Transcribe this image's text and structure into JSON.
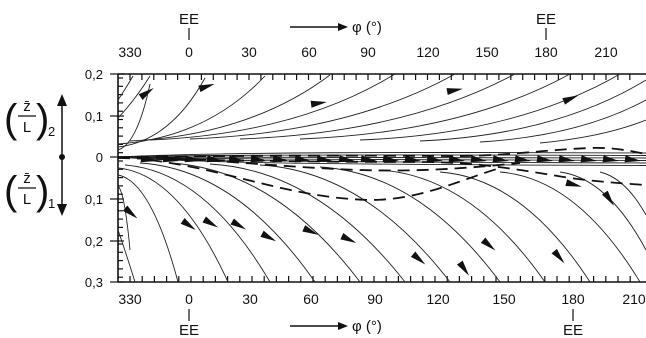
{
  "figure": {
    "phi_axis_label": "φ (°)",
    "ee_label": "EE",
    "top_ticks": [
      "330",
      "0",
      "30",
      "60",
      "90",
      "120",
      "150",
      "180",
      "210"
    ],
    "bottom_ticks": [
      "330",
      "0",
      "30",
      "60",
      "90",
      "120",
      "150",
      "180",
      "210"
    ],
    "y_ticks_upper": [
      "0,2",
      "0,1",
      "0"
    ],
    "y_ticks_lower": [
      "0,1",
      "0,2",
      "0,3"
    ],
    "upper_side_label": {
      "numerator": "z̄",
      "denominator": "L",
      "subscript": "2"
    },
    "lower_side_label": {
      "numerator": "z̄",
      "denominator": "L",
      "subscript": "1"
    },
    "colors": {
      "ink": "#111111",
      "background": "#ffffff"
    }
  }
}
